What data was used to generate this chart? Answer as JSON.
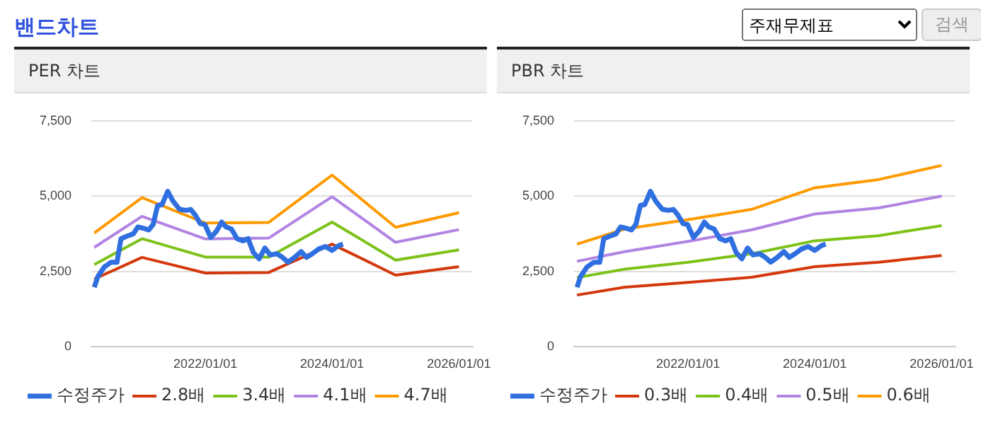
{
  "chart_data": [
    {
      "type": "line",
      "title": "PER 차트",
      "annotations": [
        "밴드차트",
        "주재무제표",
        "검색"
      ],
      "marker": "none",
      "grid": "y",
      "legend": "bottom",
      "xlim": [
        "2020-03-15",
        "2026-03-20"
      ],
      "xticks": [
        {
          "value": "2022-01-01",
          "label": "2022/01/01"
        },
        {
          "value": "2024-01-01",
          "label": "2024/01/01"
        },
        {
          "value": "2026-01-01",
          "label": "2026/01/01"
        }
      ],
      "ylim": [
        0,
        7500
      ],
      "yticks": [
        0,
        {
          "value": 2500,
          "label": "2,500"
        },
        {
          "value": 5000,
          "label": "5,000"
        },
        {
          "value": 7500,
          "label": "7,500"
        }
      ],
      "series": [
        {
          "name": "수정주가",
          "color": "#2f6fe0",
          "x": [
            "2020-04-01",
            "2020-04-22",
            "2020-05-30",
            "2020-07-08",
            "2020-08-10",
            "2020-09-02",
            "2020-10-05",
            "2020-11-12",
            "2020-12-08",
            "2021-01-07",
            "2021-02-09",
            "2021-03-06",
            "2021-04-01",
            "2021-04-26",
            "2021-05-29",
            "2021-06-28",
            "2021-08-06",
            "2021-09-13",
            "2021-10-08",
            "2021-11-03",
            "2021-12-03",
            "2021-12-29",
            "2022-02-01",
            "2022-03-05",
            "2022-04-05",
            "2022-04-30",
            "2022-05-31",
            "2022-07-03",
            "2022-08-05",
            "2022-09-04",
            "2022-10-05",
            "2022-11-07",
            "2022-12-10",
            "2023-01-10",
            "2023-02-17",
            "2023-03-22",
            "2023-04-22",
            "2023-05-30",
            "2023-07-07",
            "2023-08-07",
            "2023-09-09",
            "2023-10-17",
            "2023-11-24",
            "2024-01-01",
            "2024-02-08",
            "2024-03-04"
          ],
          "values": [
            1980,
            2340,
            2660,
            2810,
            2810,
            3590,
            3670,
            3750,
            3980,
            3940,
            3880,
            4060,
            4690,
            4720,
            5160,
            4840,
            4560,
            4530,
            4560,
            4380,
            4090,
            4060,
            3630,
            3830,
            4140,
            3980,
            3910,
            3590,
            3520,
            3590,
            3130,
            2920,
            3280,
            3050,
            3090,
            2970,
            2810,
            2970,
            3160,
            2970,
            3090,
            3250,
            3330,
            3200,
            3360,
            3410
          ]
        },
        {
          "name": "2.8배",
          "color": "#d4380d",
          "x": [
            "2020-04-01",
            "2021-01-01",
            "2022-01-01",
            "2023-01-01",
            "2024-01-01",
            "2025-01-01",
            "2026-01-01"
          ],
          "values": [
            2250,
            2970,
            2450,
            2470,
            3410,
            2380,
            2660
          ]
        },
        {
          "name": "3.4배",
          "color": "#7cc219",
          "x": [
            "2020-04-01",
            "2021-01-01",
            "2022-01-01",
            "2023-01-01",
            "2024-01-01",
            "2025-01-01",
            "2026-01-01"
          ],
          "values": [
            2730,
            3590,
            2980,
            2980,
            4140,
            2880,
            3220
          ]
        },
        {
          "name": "4.1배",
          "color": "#b183e3",
          "x": [
            "2020-04-01",
            "2021-01-01",
            "2022-01-01",
            "2023-01-01",
            "2024-01-01",
            "2025-01-01",
            "2026-01-01"
          ],
          "values": [
            3300,
            4330,
            3580,
            3610,
            4980,
            3470,
            3890
          ]
        },
        {
          "name": "4.7배",
          "color": "#ff9a00",
          "x": [
            "2020-04-01",
            "2021-01-01",
            "2022-01-01",
            "2023-01-01",
            "2024-01-01",
            "2025-01-01",
            "2026-01-01"
          ],
          "values": [
            3780,
            4950,
            4110,
            4130,
            5700,
            3970,
            4450
          ]
        }
      ]
    },
    {
      "type": "line",
      "title": "PBR 차트",
      "marker": "none",
      "grid": "y",
      "legend": "bottom",
      "xlim": [
        "2020-03-15",
        "2026-03-20"
      ],
      "xticks": [
        {
          "value": "2022-01-01",
          "label": "2022/01/01"
        },
        {
          "value": "2024-01-01",
          "label": "2024/01/01"
        },
        {
          "value": "2026-01-01",
          "label": "2026/01/01"
        }
      ],
      "ylim": [
        0,
        7500
      ],
      "yticks": [
        0,
        {
          "value": 2500,
          "label": "2,500"
        },
        {
          "value": 5000,
          "label": "5,000"
        },
        {
          "value": 7500,
          "label": "7,500"
        }
      ],
      "series": [
        {
          "name": "수정주가",
          "color": "#2f6fe0",
          "x": [
            "2020-04-01",
            "2020-04-22",
            "2020-05-30",
            "2020-07-08",
            "2020-08-10",
            "2020-09-02",
            "2020-10-05",
            "2020-11-12",
            "2020-12-08",
            "2021-01-07",
            "2021-02-09",
            "2021-03-06",
            "2021-04-01",
            "2021-04-26",
            "2021-05-29",
            "2021-06-28",
            "2021-08-06",
            "2021-09-13",
            "2021-10-08",
            "2021-11-03",
            "2021-12-03",
            "2021-12-29",
            "2022-02-01",
            "2022-03-05",
            "2022-04-05",
            "2022-04-30",
            "2022-05-31",
            "2022-07-03",
            "2022-08-05",
            "2022-09-04",
            "2022-10-05",
            "2022-11-07",
            "2022-12-10",
            "2023-01-10",
            "2023-02-17",
            "2023-03-22",
            "2023-04-22",
            "2023-05-30",
            "2023-07-07",
            "2023-08-07",
            "2023-09-09",
            "2023-10-17",
            "2023-11-24",
            "2024-01-01",
            "2024-02-08",
            "2024-03-04"
          ],
          "values": [
            1980,
            2340,
            2660,
            2810,
            2810,
            3590,
            3670,
            3750,
            3980,
            3940,
            3880,
            4060,
            4690,
            4720,
            5160,
            4840,
            4560,
            4530,
            4560,
            4380,
            4090,
            4060,
            3630,
            3830,
            4140,
            3980,
            3910,
            3590,
            3520,
            3590,
            3130,
            2920,
            3280,
            3050,
            3090,
            2970,
            2810,
            2970,
            3160,
            2970,
            3090,
            3250,
            3330,
            3200,
            3360,
            3410
          ]
        },
        {
          "name": "0.3배",
          "color": "#d4380d",
          "x": [
            "2020-04-01",
            "2021-01-01",
            "2022-01-01",
            "2023-01-01",
            "2024-01-01",
            "2025-01-01",
            "2026-01-01"
          ],
          "values": [
            1720,
            1980,
            2140,
            2310,
            2660,
            2810,
            3030
          ]
        },
        {
          "name": "0.4배",
          "color": "#7cc219",
          "x": [
            "2020-04-01",
            "2021-01-01",
            "2022-01-01",
            "2023-01-01",
            "2024-01-01",
            "2025-01-01",
            "2026-01-01"
          ],
          "values": [
            2300,
            2580,
            2810,
            3090,
            3520,
            3690,
            4020
          ]
        },
        {
          "name": "0.5배",
          "color": "#b183e3",
          "x": [
            "2020-04-01",
            "2021-01-01",
            "2022-01-01",
            "2023-01-01",
            "2024-01-01",
            "2025-01-01",
            "2026-01-01"
          ],
          "values": [
            2840,
            3160,
            3500,
            3880,
            4410,
            4610,
            5000
          ]
        },
        {
          "name": "0.6배",
          "color": "#ff9a00",
          "x": [
            "2020-04-01",
            "2021-01-01",
            "2022-01-01",
            "2023-01-01",
            "2024-01-01",
            "2025-01-01",
            "2026-01-01"
          ],
          "values": [
            3410,
            3910,
            4220,
            4560,
            5280,
            5550,
            6020
          ]
        }
      ]
    }
  ]
}
